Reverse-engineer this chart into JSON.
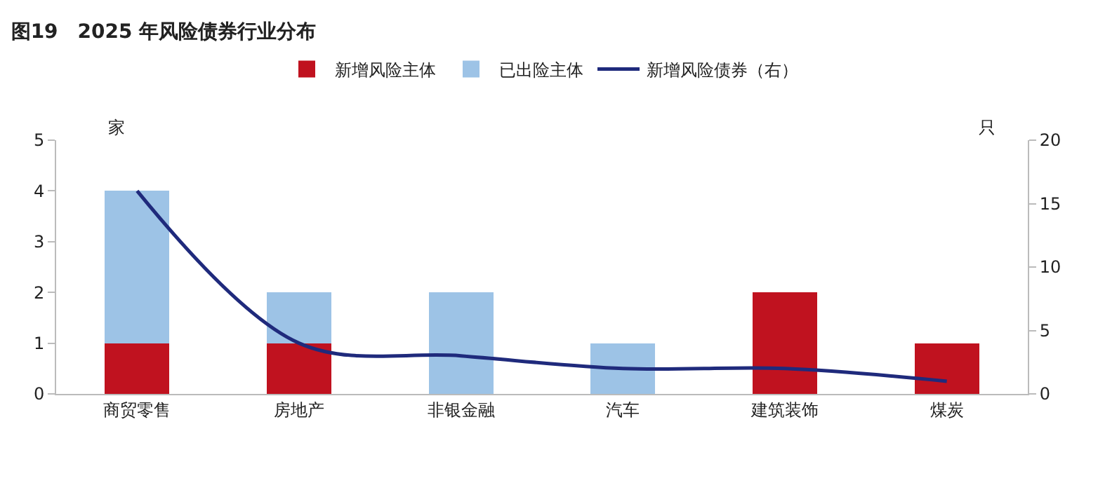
{
  "chart_data": {
    "type": "bar",
    "title": "图19　2025 年风险债券行业分布",
    "stacked": true,
    "categories": [
      "商贸零售",
      "房地产",
      "非银金融",
      "汽车",
      "建筑装饰",
      "煤炭"
    ],
    "series": [
      {
        "name": "新增风险主体",
        "color": "#c0121f",
        "values": [
          1,
          1,
          0,
          0,
          2,
          1
        ]
      },
      {
        "name": "已出险主体",
        "color": "#9dc3e6",
        "values": [
          3,
          1,
          2,
          1,
          0,
          0
        ]
      },
      {
        "name": "新增风险债券（右）",
        "type": "line",
        "axis": "y2",
        "color": "#1f2a7c",
        "values": [
          16,
          4,
          3,
          2,
          2,
          1
        ]
      }
    ],
    "ylabel": "家",
    "y2label": "只",
    "ylim": [
      0,
      5
    ],
    "yticks": [
      0,
      1,
      2,
      3,
      4,
      5
    ],
    "y2lim": [
      0,
      20
    ],
    "y2ticks": [
      0,
      5,
      10,
      15,
      20
    ],
    "legend": "top",
    "marker": "none",
    "line_style": "solid"
  }
}
